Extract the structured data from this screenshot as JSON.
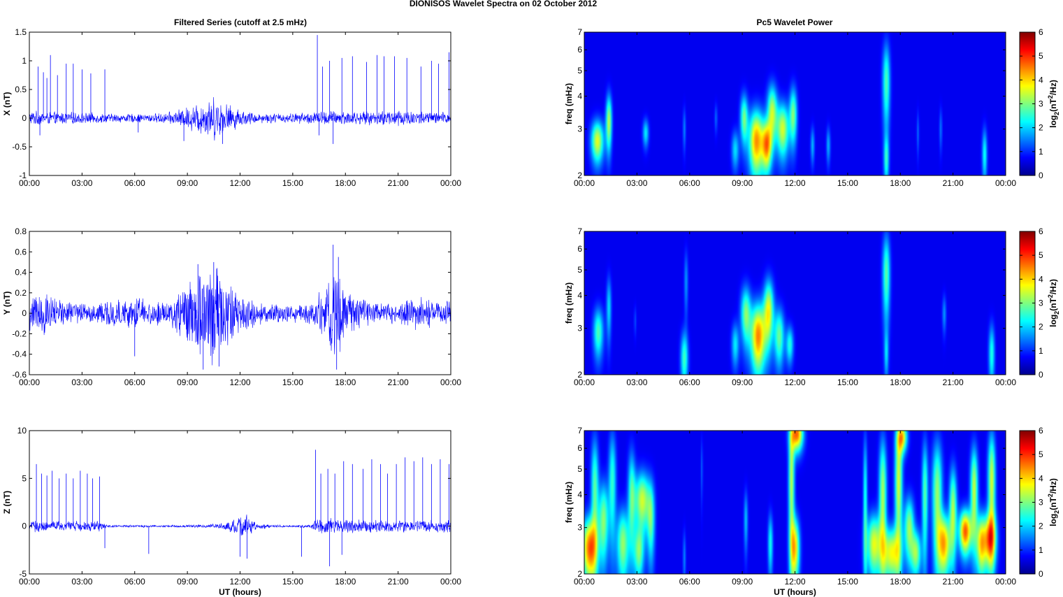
{
  "figure": {
    "title": "DIONISOS Wavelet Spectra on 02 October   2012",
    "left_title": "Filtered Series (cutoff at 2.5 mHz)",
    "right_title": "Pc5 Wavelet Power"
  },
  "chart_data": [
    {
      "type": "line",
      "title": "Filtered Series (cutoff at 2.5 mHz)",
      "ylabel": "X (nT)",
      "xlabel": "",
      "ylim": [
        -1,
        1.5
      ],
      "yticks": [
        "1.5",
        "1",
        "0.5",
        "0",
        "-0.5",
        "-1"
      ],
      "x_ticks": [
        "00:00",
        "03:00",
        "06:00",
        "09:00",
        "12:00",
        "15:00",
        "18:00",
        "21:00",
        "00:00"
      ],
      "xlim_hours": [
        0,
        24
      ],
      "color": "#0000ff",
      "envelope": {
        "x": [
          0,
          1,
          2,
          3,
          4,
          5,
          6,
          7,
          8,
          9,
          10,
          10.5,
          11,
          12,
          13,
          14,
          15,
          16,
          17,
          18,
          19,
          20,
          21,
          22,
          23,
          24
        ],
        "amp": [
          0.12,
          0.1,
          0.1,
          0.09,
          0.08,
          0.07,
          0.07,
          0.07,
          0.1,
          0.18,
          0.3,
          0.35,
          0.28,
          0.14,
          0.08,
          0.08,
          0.08,
          0.1,
          0.12,
          0.12,
          0.1,
          0.12,
          0.15,
          0.12,
          0.1,
          0.1
        ]
      },
      "spikes": [
        [
          0.5,
          0.9
        ],
        [
          0.8,
          0.8
        ],
        [
          1.0,
          0.7
        ],
        [
          1.2,
          1.1
        ],
        [
          1.6,
          0.75
        ],
        [
          2.1,
          0.95
        ],
        [
          2.5,
          0.95
        ],
        [
          3.0,
          0.85
        ],
        [
          3.5,
          0.78
        ],
        [
          4.3,
          0.85
        ],
        [
          16.4,
          1.45
        ],
        [
          16.7,
          0.9
        ],
        [
          17.1,
          1.0
        ],
        [
          17.8,
          1.05
        ],
        [
          18.4,
          1.08
        ],
        [
          19.2,
          0.98
        ],
        [
          19.8,
          1.1
        ],
        [
          20.2,
          1.08
        ],
        [
          20.8,
          1.08
        ],
        [
          21.5,
          1.05
        ],
        [
          22.3,
          0.9
        ],
        [
          22.9,
          1.0
        ],
        [
          23.3,
          0.95
        ],
        [
          23.9,
          1.15
        ]
      ],
      "dips": [
        [
          0.6,
          -0.3
        ],
        [
          6.2,
          -0.25
        ],
        [
          8.8,
          -0.4
        ],
        [
          11.0,
          -0.45
        ],
        [
          16.5,
          -0.3
        ],
        [
          17.3,
          -0.45
        ]
      ]
    },
    {
      "type": "line",
      "title": "",
      "ylabel": "Y (nT)",
      "xlabel": "",
      "ylim": [
        -0.6,
        0.8
      ],
      "yticks": [
        "0.8",
        "0.6",
        "0.4",
        "0.2",
        "0",
        "-0.2",
        "-0.4",
        "-0.6"
      ],
      "x_ticks": [
        "00:00",
        "03:00",
        "06:00",
        "09:00",
        "12:00",
        "15:00",
        "18:00",
        "21:00",
        "00:00"
      ],
      "xlim_hours": [
        0,
        24
      ],
      "color": "#0000ff",
      "envelope": {
        "x": [
          0,
          1,
          2,
          3,
          4,
          5,
          6,
          7,
          8,
          9,
          10,
          10.5,
          11,
          12,
          13,
          14,
          15,
          16,
          17,
          17.5,
          18,
          19,
          20,
          21,
          22,
          23,
          24
        ],
        "amp": [
          0.2,
          0.18,
          0.12,
          0.1,
          0.1,
          0.12,
          0.15,
          0.1,
          0.12,
          0.3,
          0.45,
          0.5,
          0.35,
          0.18,
          0.1,
          0.09,
          0.08,
          0.1,
          0.3,
          0.5,
          0.2,
          0.12,
          0.1,
          0.1,
          0.15,
          0.12,
          0.12
        ]
      },
      "spikes": [
        [
          9.6,
          0.48
        ],
        [
          10.5,
          0.5
        ],
        [
          17.3,
          0.67
        ],
        [
          17.6,
          0.55
        ]
      ],
      "dips": [
        [
          6.0,
          -0.42
        ],
        [
          9.9,
          -0.55
        ],
        [
          10.8,
          -0.52
        ],
        [
          17.5,
          -0.55
        ],
        [
          24.0,
          -0.47
        ]
      ]
    },
    {
      "type": "line",
      "title": "",
      "ylabel": "Z (nT)",
      "xlabel": "UT (hours)",
      "ylim": [
        -5,
        10
      ],
      "yticks": [
        "10",
        "5",
        "0",
        "-5"
      ],
      "x_ticks": [
        "00:00",
        "03:00",
        "06:00",
        "09:00",
        "12:00",
        "15:00",
        "18:00",
        "21:00",
        "00:00"
      ],
      "xlim_hours": [
        0,
        24
      ],
      "color": "#0000ff",
      "envelope": {
        "x": [
          0,
          1,
          2,
          3,
          4,
          4.3,
          5,
          6,
          7,
          8,
          9,
          10,
          11,
          12,
          12.3,
          13,
          14,
          15,
          16,
          16.3,
          17,
          18,
          19,
          20,
          21,
          22,
          23,
          24
        ],
        "amp": [
          0.6,
          0.5,
          0.5,
          0.5,
          0.5,
          0.2,
          0.12,
          0.12,
          0.12,
          0.12,
          0.12,
          0.15,
          0.3,
          1.0,
          1.2,
          0.3,
          0.12,
          0.12,
          0.15,
          0.6,
          0.8,
          0.7,
          0.6,
          0.6,
          0.6,
          0.6,
          0.6,
          0.6
        ]
      },
      "spikes": [
        [
          0.4,
          6.5
        ],
        [
          0.7,
          5.5
        ],
        [
          1.0,
          5.3
        ],
        [
          1.3,
          5.8
        ],
        [
          1.7,
          5.0
        ],
        [
          2.1,
          5.5
        ],
        [
          2.5,
          5.0
        ],
        [
          2.9,
          5.8
        ],
        [
          3.3,
          5.5
        ],
        [
          3.6,
          5.0
        ],
        [
          4.0,
          5.2
        ],
        [
          16.3,
          8.0
        ],
        [
          16.6,
          5.5
        ],
        [
          17.0,
          6.0
        ],
        [
          17.4,
          5.5
        ],
        [
          17.9,
          6.8
        ],
        [
          18.4,
          6.5
        ],
        [
          19.0,
          6.0
        ],
        [
          19.5,
          7.0
        ],
        [
          20.0,
          6.5
        ],
        [
          20.4,
          5.5
        ],
        [
          20.9,
          6.5
        ],
        [
          21.4,
          7.2
        ],
        [
          21.9,
          6.8
        ],
        [
          22.4,
          7.2
        ],
        [
          22.9,
          6.5
        ],
        [
          23.4,
          7.0
        ],
        [
          23.9,
          6.5
        ]
      ],
      "dips": [
        [
          4.3,
          -2.3
        ],
        [
          6.8,
          -2.9
        ],
        [
          12.0,
          -3.2
        ],
        [
          12.4,
          -3.4
        ],
        [
          15.5,
          -3.2
        ],
        [
          17.1,
          -4.2
        ],
        [
          17.8,
          -3.0
        ]
      ]
    },
    {
      "type": "heatmap",
      "title": "Pc5 Wavelet Power",
      "ylabel": "freq (mHz)",
      "xlabel": "",
      "ylim": [
        2,
        7
      ],
      "yscale": "log",
      "yticks": [
        "7",
        "6",
        "5",
        "4",
        "3",
        "2"
      ],
      "x_ticks": [
        "00:00",
        "03:00",
        "06:00",
        "09:00",
        "12:00",
        "15:00",
        "18:00",
        "21:00",
        "00:00"
      ],
      "xlim_hours": [
        0,
        24
      ],
      "colorbar_ticks": [
        "6",
        "5",
        "4",
        "3",
        "2",
        "1",
        "0"
      ],
      "colorbar_label_base": "log",
      "colorbar_label_sub": "2",
      "colorbar_label_mid": "(nT",
      "colorbar_label_sup": "2",
      "colorbar_label_end": "/Hz)",
      "colorbar_range": [
        0,
        6
      ],
      "blobs": [
        [
          0.75,
          2.7,
          0.25,
          0.35,
          3.3
        ],
        [
          1.4,
          3.2,
          0.12,
          0.55,
          3.0
        ],
        [
          3.5,
          2.9,
          0.12,
          0.25,
          1.7
        ],
        [
          5.7,
          3.0,
          0.06,
          0.4,
          1.0
        ],
        [
          7.5,
          3.3,
          0.06,
          0.3,
          0.8
        ],
        [
          8.6,
          2.5,
          0.15,
          0.3,
          1.6
        ],
        [
          9.1,
          3.3,
          0.15,
          0.5,
          2.5
        ],
        [
          9.8,
          2.7,
          0.3,
          0.55,
          4.2
        ],
        [
          10.4,
          2.6,
          0.2,
          0.4,
          3.8
        ],
        [
          10.7,
          3.5,
          0.2,
          0.6,
          3.0
        ],
        [
          11.3,
          3.0,
          0.25,
          0.5,
          3.2
        ],
        [
          11.9,
          3.4,
          0.15,
          0.6,
          2.6
        ],
        [
          13.0,
          2.6,
          0.08,
          0.3,
          1.3
        ],
        [
          13.9,
          2.6,
          0.08,
          0.3,
          1.3
        ],
        [
          17.2,
          4.5,
          0.15,
          1.2,
          2.3
        ],
        [
          17.2,
          2.3,
          0.1,
          0.35,
          1.8
        ],
        [
          19.0,
          2.9,
          0.05,
          0.4,
          0.8
        ],
        [
          20.3,
          3.0,
          0.06,
          0.4,
          0.9
        ],
        [
          22.8,
          2.4,
          0.1,
          0.4,
          1.9
        ]
      ]
    },
    {
      "type": "heatmap",
      "title": "",
      "ylabel": "freq (mHz)",
      "xlabel": "",
      "ylim": [
        2,
        7
      ],
      "yscale": "log",
      "yticks": [
        "7",
        "6",
        "5",
        "4",
        "3",
        "2"
      ],
      "x_ticks": [
        "00:00",
        "03:00",
        "06:00",
        "09:00",
        "12:00",
        "15:00",
        "18:00",
        "21:00",
        "00:00"
      ],
      "xlim_hours": [
        0,
        24
      ],
      "colorbar_ticks": [
        "6",
        "5",
        "4",
        "3",
        "2",
        "1",
        "0"
      ],
      "colorbar_label_base": "log",
      "colorbar_label_sub": "2",
      "colorbar_label_mid": "(nT",
      "colorbar_label_sup": "2",
      "colorbar_label_end": "/Hz)",
      "colorbar_range": [
        0,
        6
      ],
      "blobs": [
        [
          0.8,
          2.9,
          0.2,
          0.45,
          2.3
        ],
        [
          1.4,
          3.6,
          0.1,
          0.7,
          1.6
        ],
        [
          2.9,
          3.2,
          0.05,
          0.3,
          0.6
        ],
        [
          5.7,
          2.3,
          0.15,
          0.4,
          2.2
        ],
        [
          5.8,
          4.5,
          0.08,
          0.9,
          1.1
        ],
        [
          8.6,
          2.6,
          0.15,
          0.35,
          1.7
        ],
        [
          9.2,
          3.4,
          0.2,
          0.6,
          2.6
        ],
        [
          9.9,
          2.8,
          0.3,
          0.6,
          4.3
        ],
        [
          10.5,
          3.5,
          0.2,
          0.7,
          3.3
        ],
        [
          11.1,
          2.8,
          0.2,
          0.5,
          2.5
        ],
        [
          11.7,
          2.6,
          0.15,
          0.3,
          2.0
        ],
        [
          17.2,
          4.8,
          0.15,
          1.3,
          2.4
        ],
        [
          17.2,
          2.4,
          0.08,
          0.35,
          1.3
        ],
        [
          20.5,
          3.4,
          0.08,
          0.4,
          1.1
        ],
        [
          23.2,
          2.4,
          0.12,
          0.45,
          2.0
        ]
      ]
    },
    {
      "type": "heatmap",
      "title": "",
      "ylabel": "freq (mHz)",
      "xlabel": "UT (hours)",
      "ylim": [
        2,
        7
      ],
      "yscale": "log",
      "yticks": [
        "7",
        "6",
        "5",
        "4",
        "3",
        "2"
      ],
      "x_ticks": [
        "00:00",
        "03:00",
        "06:00",
        "09:00",
        "12:00",
        "15:00",
        "18:00",
        "21:00",
        "00:00"
      ],
      "xlim_hours": [
        0,
        24
      ],
      "colorbar_ticks": [
        "6",
        "5",
        "4",
        "3",
        "2",
        "1",
        "0"
      ],
      "colorbar_label_base": "log",
      "colorbar_label_sub": "2",
      "colorbar_label_mid": "(nT",
      "colorbar_label_sup": "2",
      "colorbar_label_end": "/Hz)",
      "colorbar_range": [
        0,
        6
      ],
      "blobs": [
        [
          0.3,
          2.5,
          0.3,
          0.5,
          4.5
        ],
        [
          0.6,
          4.2,
          0.15,
          1.5,
          2.4
        ],
        [
          1.1,
          3.2,
          0.2,
          0.8,
          2.7
        ],
        [
          1.6,
          4.5,
          0.15,
          1.5,
          2.1
        ],
        [
          2.2,
          2.6,
          0.25,
          0.6,
          2.8
        ],
        [
          2.7,
          4.0,
          0.15,
          1.2,
          2.2
        ],
        [
          3.1,
          2.4,
          0.2,
          0.4,
          2.4
        ],
        [
          3.3,
          3.8,
          0.3,
          0.7,
          3.2
        ],
        [
          3.8,
          3.2,
          0.15,
          0.8,
          2.2
        ],
        [
          5.7,
          2.3,
          0.06,
          0.4,
          1.0
        ],
        [
          6.7,
          5.0,
          0.04,
          1.0,
          0.8
        ],
        [
          9.2,
          3.2,
          0.08,
          0.6,
          1.4
        ],
        [
          10.6,
          2.6,
          0.1,
          0.5,
          1.9
        ],
        [
          11.8,
          4.5,
          0.12,
          1.8,
          3.0
        ],
        [
          12.0,
          2.5,
          0.18,
          0.5,
          3.6
        ],
        [
          12.1,
          6.8,
          0.25,
          0.7,
          4.5
        ],
        [
          16.0,
          3.8,
          0.08,
          1.8,
          2.0
        ],
        [
          16.5,
          2.6,
          0.3,
          0.5,
          3.3
        ],
        [
          17.0,
          4.0,
          0.15,
          1.6,
          2.9
        ],
        [
          17.5,
          2.4,
          0.35,
          0.4,
          3.4
        ],
        [
          17.9,
          4.5,
          0.15,
          1.8,
          3.2
        ],
        [
          18.1,
          6.6,
          0.2,
          0.6,
          3.6
        ],
        [
          18.5,
          3.0,
          0.2,
          0.6,
          2.8
        ],
        [
          18.9,
          2.4,
          0.2,
          0.35,
          2.7
        ],
        [
          19.4,
          4.0,
          0.12,
          1.5,
          2.4
        ],
        [
          20.1,
          4.0,
          0.2,
          1.5,
          2.8
        ],
        [
          20.5,
          2.6,
          0.25,
          0.5,
          3.9
        ],
        [
          21.0,
          3.5,
          0.15,
          1.0,
          2.9
        ],
        [
          21.7,
          2.9,
          0.25,
          0.4,
          4.6
        ],
        [
          22.2,
          4.2,
          0.15,
          1.2,
          3.1
        ],
        [
          22.6,
          2.6,
          0.2,
          0.5,
          3.5
        ],
        [
          23.1,
          2.7,
          0.25,
          0.45,
          4.0
        ],
        [
          23.2,
          4.5,
          0.15,
          1.5,
          3.2
        ]
      ]
    }
  ]
}
